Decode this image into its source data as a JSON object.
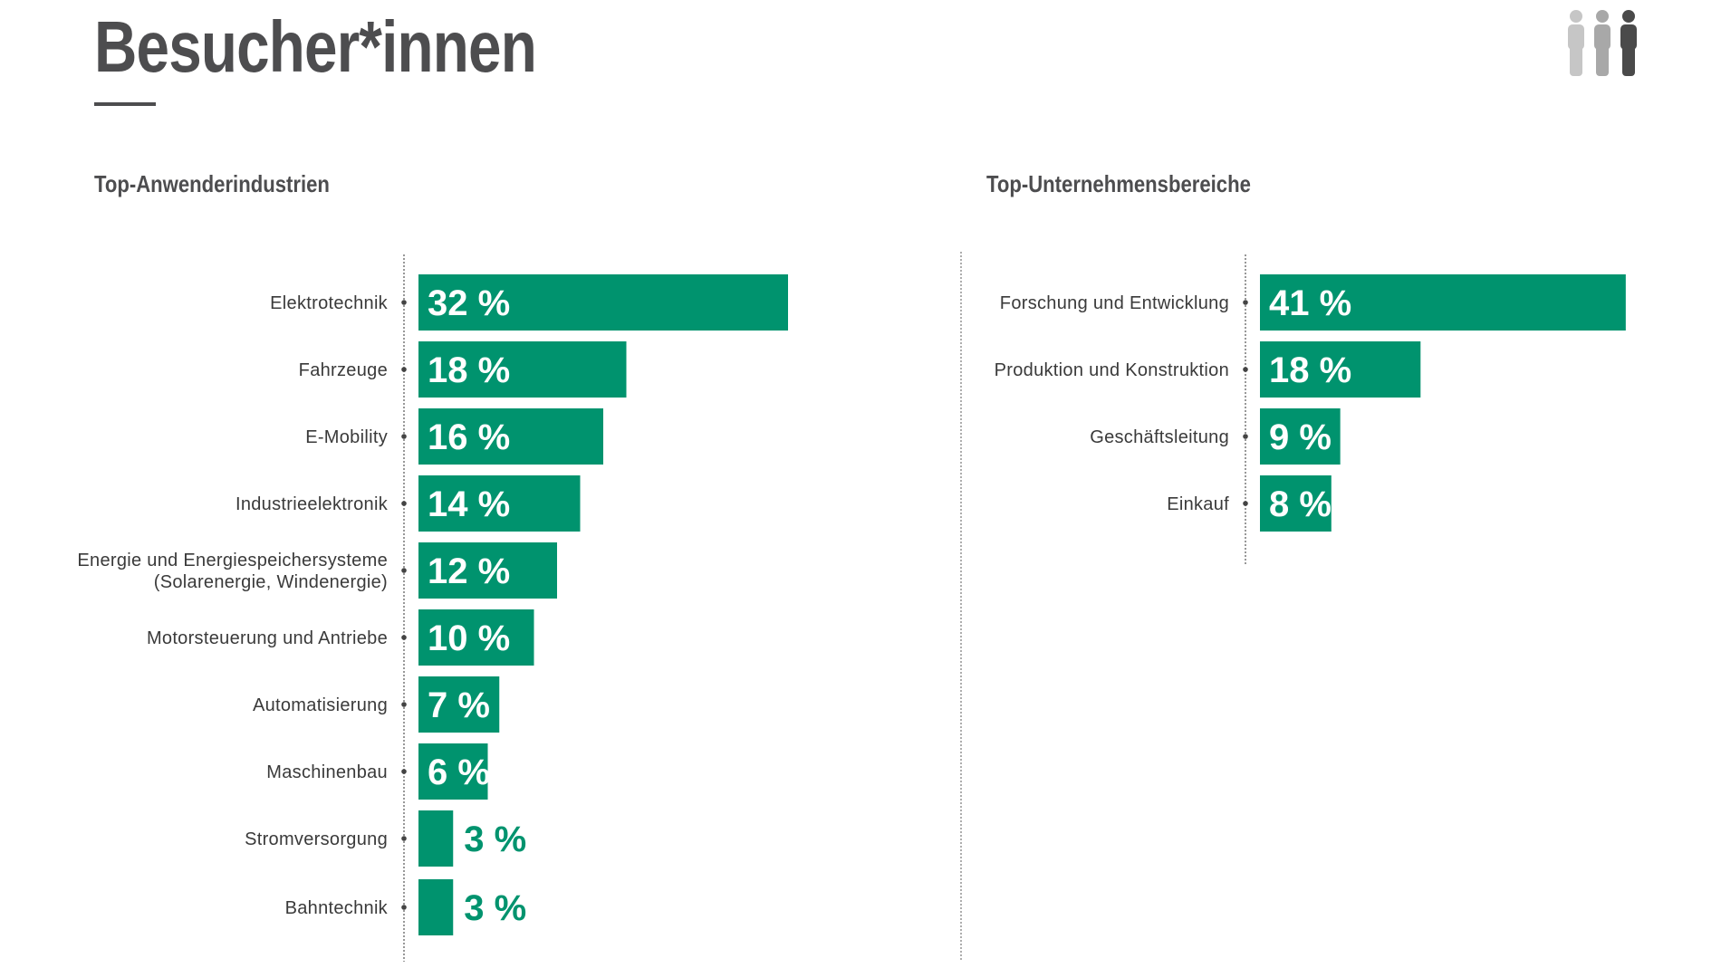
{
  "header": {
    "title": "Besucher*innen",
    "icon": "people-icon"
  },
  "colors": {
    "bar": "#00936e",
    "text": "#4d4d4f",
    "icon_light": "#c6c6c6",
    "icon_mid": "#a8a8a8",
    "icon_dark": "#4a4a4a"
  },
  "chart_data": [
    {
      "type": "bar",
      "orientation": "horizontal",
      "title": "Top-Anwenderindustrien",
      "categories": [
        "Elektrotechnik",
        "Fahrzeuge",
        "E-Mobility",
        "Industrieelektronik",
        [
          "Energie und Energiespeichersysteme",
          "(Solarenergie, Windenergie)"
        ],
        "Motorsteuerung und Antriebe",
        "Automatisierung",
        "Maschinenbau",
        "Stromversorgung",
        "Bahntechnik"
      ],
      "values": [
        32,
        18,
        16,
        14,
        12,
        10,
        7,
        6,
        3,
        3
      ],
      "value_labels": [
        "32 %",
        "18 %",
        "16 %",
        "14 %",
        "12 %",
        "10 %",
        "7 %",
        "6 %",
        "3 %",
        "3 %"
      ],
      "unit": "%",
      "grid": false,
      "legend": "none"
    },
    {
      "type": "bar",
      "orientation": "horizontal",
      "title": "Top-Unternehmensbereiche",
      "categories": [
        "Forschung und Entwicklung",
        "Produktion und Konstruktion",
        "Geschäftsleitung",
        "Einkauf"
      ],
      "values": [
        41,
        18,
        9,
        8
      ],
      "value_labels": [
        "41 %",
        "18 %",
        "9 %",
        "8 %"
      ],
      "unit": "%",
      "grid": false,
      "legend": "none"
    }
  ]
}
